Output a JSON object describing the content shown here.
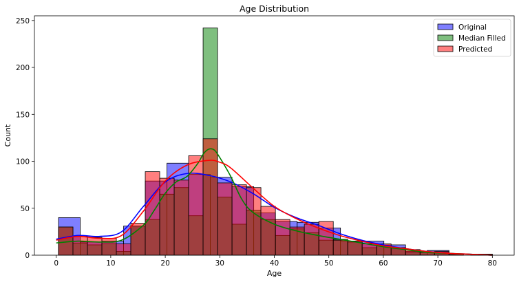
{
  "chart_data": {
    "type": "histogram",
    "title": "Age Distribution",
    "xlabel": "Age",
    "ylabel": "Count",
    "xlim": [
      -4,
      84
    ],
    "ylim": [
      0,
      255
    ],
    "x_ticks": [
      0,
      10,
      20,
      30,
      40,
      50,
      60,
      70,
      80
    ],
    "y_ticks": [
      0,
      50,
      100,
      150,
      200,
      250
    ],
    "grid": false,
    "legend_position": "top-right",
    "series": [
      {
        "name": "Original",
        "color": "#0000ff",
        "bins": [
          {
            "x0": 0.42,
            "x1": 4.4,
            "count": 40
          },
          {
            "x0": 4.4,
            "x1": 8.38,
            "count": 14
          },
          {
            "x0": 8.38,
            "x1": 12.36,
            "count": 15
          },
          {
            "x0": 12.36,
            "x1": 16.33,
            "count": 31
          },
          {
            "x0": 16.33,
            "x1": 20.31,
            "count": 79
          },
          {
            "x0": 20.31,
            "x1": 24.29,
            "count": 98
          },
          {
            "x0": 24.29,
            "x1": 28.27,
            "count": 86
          },
          {
            "x0": 28.27,
            "x1": 32.25,
            "count": 83
          },
          {
            "x0": 32.25,
            "x1": 36.23,
            "count": 73
          },
          {
            "x0": 36.23,
            "x1": 40.21,
            "count": 45
          },
          {
            "x0": 40.21,
            "x1": 44.19,
            "count": 36
          },
          {
            "x0": 44.19,
            "x1": 48.17,
            "count": 35
          },
          {
            "x0": 48.17,
            "x1": 52.14,
            "count": 29
          },
          {
            "x0": 52.14,
            "x1": 56.12,
            "count": 15
          },
          {
            "x0": 56.12,
            "x1": 60.1,
            "count": 15
          },
          {
            "x0": 60.1,
            "x1": 64.08,
            "count": 11
          },
          {
            "x0": 64.08,
            "x1": 68.06,
            "count": 4
          },
          {
            "x0": 68.06,
            "x1": 72.04,
            "count": 5
          },
          {
            "x0": 72.04,
            "x1": 76.02,
            "count": 0
          },
          {
            "x0": 76.02,
            "x1": 80.0,
            "count": 1
          }
        ],
        "kde_x": [
          0,
          4,
          8,
          12,
          16,
          20,
          24,
          28,
          32,
          36,
          40,
          44,
          48,
          52,
          56,
          60,
          64,
          68,
          72,
          76,
          80
        ],
        "kde_y": [
          17,
          21,
          20,
          25,
          52,
          78,
          87,
          85,
          78,
          66,
          51,
          40,
          32,
          23,
          16,
          11,
          7,
          4,
          2,
          1,
          0
        ]
      },
      {
        "name": "Median Filled",
        "color": "#008000",
        "bins": [
          {
            "x0": 0.42,
            "x1": 3.07,
            "count": 30
          },
          {
            "x0": 3.07,
            "x1": 5.72,
            "count": 13
          },
          {
            "x0": 5.72,
            "x1": 8.38,
            "count": 11
          },
          {
            "x0": 8.38,
            "x1": 11.03,
            "count": 12
          },
          {
            "x0": 11.03,
            "x1": 13.68,
            "count": 4
          },
          {
            "x0": 13.68,
            "x1": 16.33,
            "count": 31
          },
          {
            "x0": 16.33,
            "x1": 18.98,
            "count": 38
          },
          {
            "x0": 18.98,
            "x1": 21.64,
            "count": 65
          },
          {
            "x0": 21.64,
            "x1": 24.29,
            "count": 72
          },
          {
            "x0": 24.29,
            "x1": 26.94,
            "count": 42
          },
          {
            "x0": 26.94,
            "x1": 29.59,
            "count": 242
          },
          {
            "x0": 29.59,
            "x1": 32.25,
            "count": 62
          },
          {
            "x0": 32.25,
            "x1": 34.9,
            "count": 33
          },
          {
            "x0": 34.9,
            "x1": 37.55,
            "count": 48
          },
          {
            "x0": 37.55,
            "x1": 40.21,
            "count": 38
          },
          {
            "x0": 40.21,
            "x1": 42.86,
            "count": 21
          },
          {
            "x0": 42.86,
            "x1": 45.51,
            "count": 28
          },
          {
            "x0": 45.51,
            "x1": 48.17,
            "count": 24
          },
          {
            "x0": 48.17,
            "x1": 50.82,
            "count": 16
          },
          {
            "x0": 50.82,
            "x1": 53.47,
            "count": 17
          },
          {
            "x0": 53.47,
            "x1": 56.12,
            "count": 14
          },
          {
            "x0": 56.12,
            "x1": 58.78,
            "count": 8
          },
          {
            "x0": 58.78,
            "x1": 61.43,
            "count": 10
          },
          {
            "x0": 61.43,
            "x1": 64.08,
            "count": 8
          },
          {
            "x0": 64.08,
            "x1": 66.74,
            "count": 3
          },
          {
            "x0": 66.74,
            "x1": 69.39,
            "count": 3
          },
          {
            "x0": 69.39,
            "x1": 72.04,
            "count": 3
          },
          {
            "x0": 72.04,
            "x1": 74.69,
            "count": 1
          },
          {
            "x0": 74.69,
            "x1": 77.35,
            "count": 0
          },
          {
            "x0": 77.35,
            "x1": 80.0,
            "count": 1
          }
        ],
        "kde_x": [
          0,
          4,
          8,
          12,
          16,
          18,
          20,
          22,
          24,
          26,
          27,
          28,
          29,
          30,
          32,
          34,
          36,
          40,
          44,
          48,
          52,
          56,
          60,
          64,
          68,
          72,
          76,
          80
        ],
        "kde_y": [
          13,
          15,
          14,
          16,
          32,
          48,
          66,
          78,
          84,
          98,
          108,
          113,
          112,
          104,
          84,
          60,
          46,
          33,
          26,
          21,
          17,
          13,
          9,
          6,
          3,
          2,
          1,
          0
        ]
      },
      {
        "name": "Predicted",
        "color": "#ff0000",
        "bins": [
          {
            "x0": 0.42,
            "x1": 3.07,
            "count": 30
          },
          {
            "x0": 3.07,
            "x1": 5.72,
            "count": 20
          },
          {
            "x0": 5.72,
            "x1": 8.38,
            "count": 19
          },
          {
            "x0": 8.38,
            "x1": 11.03,
            "count": 18
          },
          {
            "x0": 11.03,
            "x1": 13.68,
            "count": 12
          },
          {
            "x0": 13.68,
            "x1": 16.33,
            "count": 34
          },
          {
            "x0": 16.33,
            "x1": 18.98,
            "count": 89
          },
          {
            "x0": 18.98,
            "x1": 21.64,
            "count": 82
          },
          {
            "x0": 21.64,
            "x1": 24.29,
            "count": 80
          },
          {
            "x0": 24.29,
            "x1": 26.94,
            "count": 106
          },
          {
            "x0": 26.94,
            "x1": 29.59,
            "count": 124
          },
          {
            "x0": 29.59,
            "x1": 32.25,
            "count": 77
          },
          {
            "x0": 32.25,
            "x1": 34.9,
            "count": 75
          },
          {
            "x0": 34.9,
            "x1": 37.55,
            "count": 72
          },
          {
            "x0": 37.55,
            "x1": 40.21,
            "count": 52
          },
          {
            "x0": 40.21,
            "x1": 42.86,
            "count": 38
          },
          {
            "x0": 42.86,
            "x1": 45.51,
            "count": 30
          },
          {
            "x0": 45.51,
            "x1": 48.17,
            "count": 33
          },
          {
            "x0": 48.17,
            "x1": 50.82,
            "count": 36
          },
          {
            "x0": 50.82,
            "x1": 53.47,
            "count": 16
          },
          {
            "x0": 53.47,
            "x1": 56.12,
            "count": 15
          },
          {
            "x0": 56.12,
            "x1": 58.78,
            "count": 12
          },
          {
            "x0": 58.78,
            "x1": 61.43,
            "count": 12
          },
          {
            "x0": 61.43,
            "x1": 64.08,
            "count": 8
          },
          {
            "x0": 64.08,
            "x1": 66.74,
            "count": 6
          },
          {
            "x0": 66.74,
            "x1": 69.39,
            "count": 3
          },
          {
            "x0": 69.39,
            "x1": 72.04,
            "count": 4
          },
          {
            "x0": 72.04,
            "x1": 74.69,
            "count": 1
          },
          {
            "x0": 74.69,
            "x1": 77.35,
            "count": 0
          },
          {
            "x0": 77.35,
            "x1": 80.0,
            "count": 1
          }
        ],
        "kde_x": [
          0,
          4,
          8,
          12,
          16,
          20,
          24,
          28,
          30,
          32,
          36,
          40,
          44,
          48,
          52,
          56,
          60,
          64,
          68,
          72,
          76,
          80
        ],
        "kde_y": [
          16,
          20,
          18,
          21,
          47,
          79,
          96,
          101,
          99,
          93,
          72,
          52,
          39,
          29,
          21,
          15,
          10,
          7,
          4,
          2,
          1,
          0
        ]
      }
    ]
  }
}
